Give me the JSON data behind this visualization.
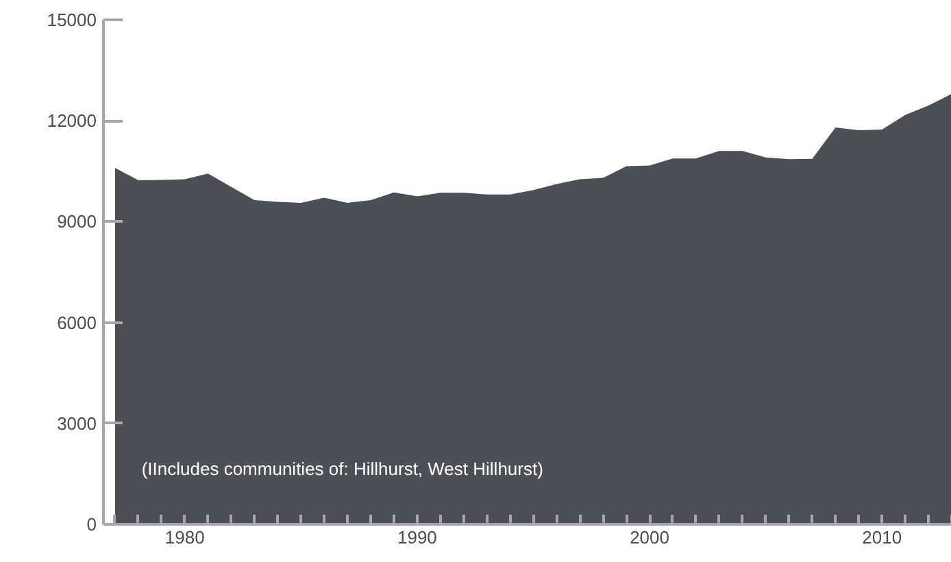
{
  "chart_data": {
    "type": "area",
    "x": [
      1977,
      1978,
      1979,
      1980,
      1981,
      1982,
      1983,
      1984,
      1985,
      1986,
      1987,
      1988,
      1989,
      1990,
      1991,
      1992,
      1993,
      1994,
      1995,
      1996,
      1997,
      1998,
      1999,
      2000,
      2001,
      2002,
      2003,
      2004,
      2005,
      2006,
      2007,
      2008,
      2009,
      2010,
      2011,
      2012,
      2013
    ],
    "series": [
      {
        "color": "#4d4f57",
        "values": [
          10600,
          10230,
          10240,
          10260,
          10430,
          10030,
          9640,
          9590,
          9560,
          9710,
          9560,
          9640,
          9870,
          9750,
          9860,
          9860,
          9810,
          9810,
          9940,
          10120,
          10260,
          10300,
          10650,
          10670,
          10880,
          10880,
          11100,
          11100,
          10910,
          10860,
          10870,
          11800,
          11720,
          11740,
          12170,
          12450,
          12800
        ]
      }
    ],
    "xlim": [
      1976.5,
      2013
    ],
    "ylim": [
      0,
      15000
    ],
    "xticks": [
      {
        "value": 1977,
        "label": null
      },
      {
        "value": 1978,
        "label": null
      },
      {
        "value": 1979,
        "label": null
      },
      1980,
      {
        "value": 1981,
        "label": null
      },
      {
        "value": 1982,
        "label": null
      },
      {
        "value": 1983,
        "label": null
      },
      {
        "value": 1984,
        "label": null
      },
      {
        "value": 1985,
        "label": null
      },
      {
        "value": 1986,
        "label": null
      },
      {
        "value": 1987,
        "label": null
      },
      {
        "value": 1988,
        "label": null
      },
      {
        "value": 1989,
        "label": null
      },
      1990,
      {
        "value": 1991,
        "label": null
      },
      {
        "value": 1992,
        "label": null
      },
      {
        "value": 1993,
        "label": null
      },
      {
        "value": 1994,
        "label": null
      },
      {
        "value": 1995,
        "label": null
      },
      {
        "value": 1996,
        "label": null
      },
      {
        "value": 1997,
        "label": null
      },
      {
        "value": 1998,
        "label": null
      },
      {
        "value": 1999,
        "label": null
      },
      2000,
      {
        "value": 2001,
        "label": null
      },
      {
        "value": 2002,
        "label": null
      },
      {
        "value": 2003,
        "label": null
      },
      {
        "value": 2004,
        "label": null
      },
      {
        "value": 2005,
        "label": null
      },
      {
        "value": 2006,
        "label": null
      },
      {
        "value": 2007,
        "label": null
      },
      {
        "value": 2008,
        "label": null
      },
      {
        "value": 2009,
        "label": null
      },
      2010,
      {
        "value": 2011,
        "label": null
      },
      {
        "value": 2012,
        "label": null
      },
      {
        "value": 2013,
        "label": null
      }
    ],
    "yticks": [
      0,
      3000,
      6000,
      9000,
      12000,
      15000
    ],
    "annotations": [
      "(IIncludes communities of: Hillhurst, West Hillhurst)"
    ],
    "grid": false
  }
}
